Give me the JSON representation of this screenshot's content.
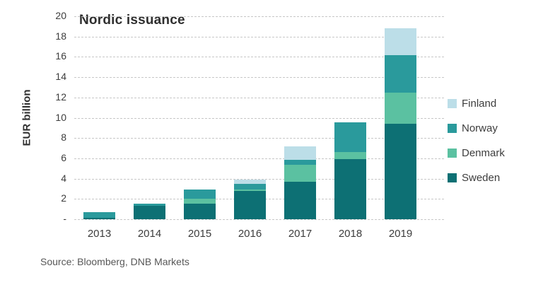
{
  "source_note": "Source: Bloomberg, DNB Markets",
  "chart_data": {
    "type": "bar",
    "stacked": true,
    "title": "Nordic issuance",
    "ylabel": "EUR billion",
    "xlabel": "",
    "categories": [
      "2013",
      "2014",
      "2015",
      "2016",
      "2017",
      "2018",
      "2019"
    ],
    "series": [
      {
        "name": "Sweden",
        "color": "#0D7074",
        "values": [
          0.15,
          1.35,
          1.5,
          2.8,
          3.7,
          5.9,
          9.4
        ]
      },
      {
        "name": "Denmark",
        "color": "#5BC1A1",
        "values": [
          0,
          0,
          0.5,
          0.1,
          1.7,
          0.75,
          3.05
        ]
      },
      {
        "name": "Norway",
        "color": "#2A9A9C",
        "values": [
          0.55,
          0.2,
          0.9,
          0.55,
          0.45,
          2.9,
          3.7
        ]
      },
      {
        "name": "Finland",
        "color": "#BCDEE8",
        "values": [
          0,
          0,
          0,
          0.45,
          1.35,
          0,
          2.7
        ]
      }
    ],
    "totals": [
      0.7,
      1.55,
      2.9,
      3.9,
      7.2,
      9.55,
      18.85
    ],
    "ylim": [
      0,
      20
    ],
    "ytick_step": 2,
    "y_tick_labels": [
      "20",
      "18",
      "16",
      "14",
      "12",
      "10",
      "8",
      "6",
      "4",
      "2",
      "-"
    ],
    "grid": "horizontal dashed",
    "legend_position": "right",
    "legend_order_top_to_bottom": [
      "Finland",
      "Norway",
      "Denmark",
      "Sweden"
    ]
  }
}
